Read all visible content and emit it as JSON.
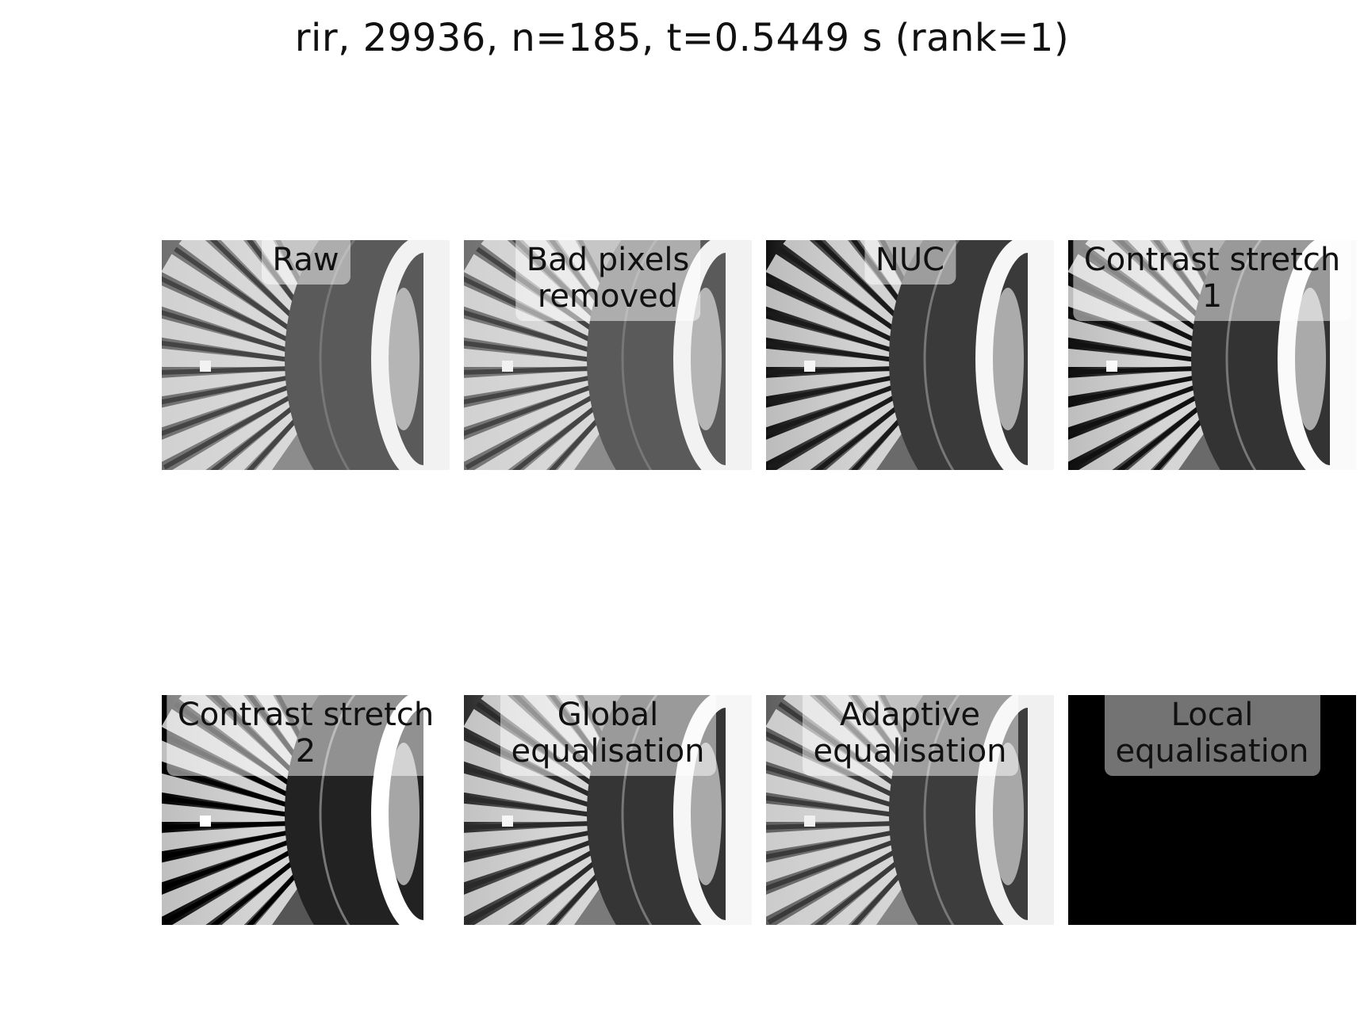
{
  "figure": {
    "title": "rir, 29936, n=185, t=0.5449 s (rank=1)"
  },
  "panels": [
    {
      "label": "Raw",
      "style": {
        "bg": "#8c8c8c",
        "left": "#6f6f6f",
        "hub": "#5a5a5a",
        "bright": "#f2f2f2",
        "spoke": "#444"
      }
    },
    {
      "label": "Bad pixels removed",
      "style": {
        "bg": "#8c8c8c",
        "left": "#707070",
        "hub": "#5a5a5a",
        "bright": "#f2f2f2",
        "spoke": "#444"
      }
    },
    {
      "label": "NUC",
      "style": {
        "bg": "#6a6a6a",
        "left": "#111111",
        "hub": "#3a3a3a",
        "bright": "#f6f6f6",
        "spoke": "#1a1a1a"
      }
    },
    {
      "label": "Contrast stretch 1",
      "style": {
        "bg": "#6a6a6a",
        "left": "#0a0a0a",
        "hub": "#333333",
        "bright": "#fafafa",
        "spoke": "#111"
      }
    },
    {
      "label": "Contrast stretch 2",
      "style": {
        "bg": "#555555",
        "left": "#000000",
        "hub": "#222222",
        "bright": "#ffffff",
        "spoke": "#000"
      }
    },
    {
      "label": "Global equalisation",
      "style": {
        "bg": "#7a7a7a",
        "left": "#2b2b2b",
        "hub": "#353535",
        "bright": "#f6f6f6",
        "spoke": "#2a2a2a"
      }
    },
    {
      "label": "Adaptive equalisation",
      "style": {
        "bg": "#858585",
        "left": "#5f5f5f",
        "hub": "#3d3d3d",
        "bright": "#f0f0f0",
        "spoke": "#3a3a3a"
      }
    },
    {
      "label": "Local equalisation",
      "style": {
        "bg": "#000000",
        "left": "#000000",
        "hub": "#000000",
        "bright": "#000000",
        "spoke": "#000"
      }
    }
  ]
}
